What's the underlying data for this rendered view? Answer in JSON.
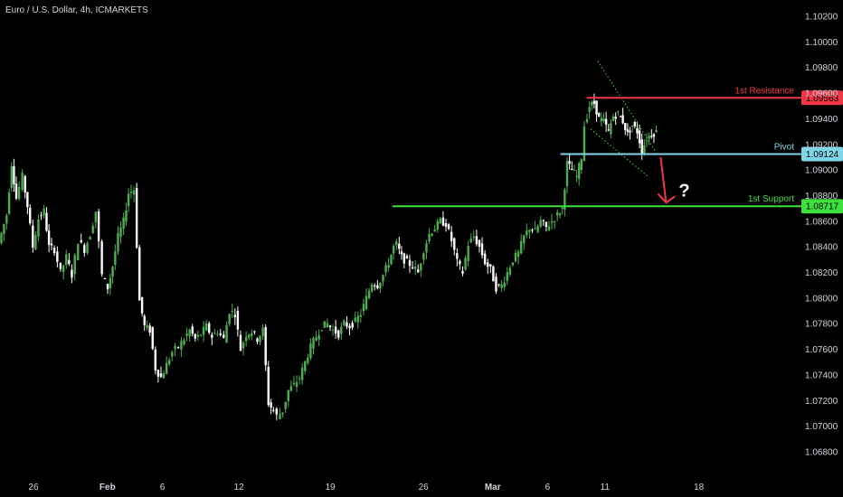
{
  "header": {
    "symbol_title": "Euro / U.S. Dollar, 4h, ICMARKETS"
  },
  "colors": {
    "background": "#000000",
    "candle": "#ffffff",
    "candle_up": "#4caf50",
    "resistance": "#f23645",
    "pivot": "#7fd6e8",
    "support": "#3ee03e",
    "channel": "#3ee03e",
    "arrow": "#f23645",
    "axis_text": "#d1d4dc"
  },
  "chart_data": {
    "type": "candlestick",
    "title": "Euro / U.S. Dollar, 4h, ICMARKETS",
    "y_range": [
      1.068,
      1.102
    ],
    "y_ticks": [
      "1.10200",
      "1.10000",
      "1.09800",
      "1.09600",
      "1.09400",
      "1.09200",
      "1.09000",
      "1.08800",
      "1.08600",
      "1.08400",
      "1.08200",
      "1.08000",
      "1.07800",
      "1.07600",
      "1.07400",
      "1.07200",
      "1.07000",
      "1.06800"
    ],
    "x_ticks": [
      {
        "label": "26",
        "pos": 0.042
      },
      {
        "label": "Feb",
        "pos": 0.135
      },
      {
        "label": "6",
        "pos": 0.204
      },
      {
        "label": "12",
        "pos": 0.3
      },
      {
        "label": "19",
        "pos": 0.415
      },
      {
        "label": "26",
        "pos": 0.532
      },
      {
        "label": "Mar",
        "pos": 0.619
      },
      {
        "label": "6",
        "pos": 0.688
      },
      {
        "label": "11",
        "pos": 0.76
      },
      {
        "label": "18",
        "pos": 0.878
      }
    ],
    "price_path": [
      [
        0.0,
        1.0843
      ],
      [
        0.01,
        1.0865
      ],
      [
        0.016,
        1.0905
      ],
      [
        0.022,
        1.0878
      ],
      [
        0.03,
        1.0895
      ],
      [
        0.036,
        1.0872
      ],
      [
        0.043,
        1.084
      ],
      [
        0.05,
        1.0862
      ],
      [
        0.057,
        1.0868
      ],
      [
        0.063,
        1.084
      ],
      [
        0.07,
        1.0838
      ],
      [
        0.078,
        1.082
      ],
      [
        0.085,
        1.0832
      ],
      [
        0.092,
        1.0818
      ],
      [
        0.1,
        1.0845
      ],
      [
        0.108,
        1.0838
      ],
      [
        0.115,
        1.085
      ],
      [
        0.122,
        1.0868
      ],
      [
        0.13,
        1.0818
      ],
      [
        0.137,
        1.0808
      ],
      [
        0.143,
        1.0825
      ],
      [
        0.15,
        1.0848
      ],
      [
        0.157,
        1.086
      ],
      [
        0.163,
        1.0882
      ],
      [
        0.17,
        1.0885
      ],
      [
        0.177,
        1.0798
      ],
      [
        0.183,
        1.0778
      ],
      [
        0.19,
        1.0775
      ],
      [
        0.197,
        1.0745
      ],
      [
        0.204,
        1.0738
      ],
      [
        0.211,
        1.0748
      ],
      [
        0.218,
        1.0758
      ],
      [
        0.226,
        1.0762
      ],
      [
        0.233,
        1.0768
      ],
      [
        0.24,
        1.0775
      ],
      [
        0.247,
        1.0768
      ],
      [
        0.254,
        1.0772
      ],
      [
        0.261,
        1.0778
      ],
      [
        0.268,
        1.077
      ],
      [
        0.275,
        1.0774
      ],
      [
        0.283,
        1.0768
      ],
      [
        0.29,
        1.079
      ],
      [
        0.297,
        1.0788
      ],
      [
        0.304,
        1.076
      ],
      [
        0.311,
        1.0772
      ],
      [
        0.318,
        1.0774
      ],
      [
        0.325,
        1.0768
      ],
      [
        0.332,
        1.0775
      ],
      [
        0.339,
        1.0718
      ],
      [
        0.345,
        1.0712
      ],
      [
        0.35,
        1.0708
      ],
      [
        0.357,
        1.0712
      ],
      [
        0.364,
        1.0728
      ],
      [
        0.371,
        1.0732
      ],
      [
        0.378,
        1.0738
      ],
      [
        0.385,
        1.075
      ],
      [
        0.392,
        1.0762
      ],
      [
        0.399,
        1.077
      ],
      [
        0.406,
        1.0778
      ],
      [
        0.413,
        1.078
      ],
      [
        0.42,
        1.0775
      ],
      [
        0.427,
        1.0772
      ],
      [
        0.434,
        1.078
      ],
      [
        0.441,
        1.0778
      ],
      [
        0.448,
        1.0782
      ],
      [
        0.455,
        1.0788
      ],
      [
        0.462,
        1.08
      ],
      [
        0.469,
        1.0812
      ],
      [
        0.476,
        1.081
      ],
      [
        0.483,
        1.0818
      ],
      [
        0.49,
        1.0828
      ],
      [
        0.496,
        1.084
      ],
      [
        0.5,
        1.0842
      ],
      [
        0.506,
        1.0832
      ],
      [
        0.513,
        1.0828
      ],
      [
        0.52,
        1.0825
      ],
      [
        0.527,
        1.082
      ],
      [
        0.534,
        1.0838
      ],
      [
        0.541,
        1.085
      ],
      [
        0.548,
        1.0855
      ],
      [
        0.555,
        1.086
      ],
      [
        0.562,
        1.0858
      ],
      [
        0.569,
        1.0845
      ],
      [
        0.576,
        1.0828
      ],
      [
        0.583,
        1.082
      ],
      [
        0.59,
        1.0842
      ],
      [
        0.597,
        1.0848
      ],
      [
        0.604,
        1.084
      ],
      [
        0.611,
        1.0828
      ],
      [
        0.618,
        1.0822
      ],
      [
        0.625,
        1.0808
      ],
      [
        0.632,
        1.081
      ],
      [
        0.639,
        1.082
      ],
      [
        0.646,
        1.083
      ],
      [
        0.653,
        1.0835
      ],
      [
        0.66,
        1.0848
      ],
      [
        0.667,
        1.0855
      ],
      [
        0.674,
        1.0852
      ],
      [
        0.681,
        1.086
      ],
      [
        0.688,
        1.0855
      ],
      [
        0.695,
        1.086
      ],
      [
        0.702,
        1.0865
      ],
      [
        0.708,
        1.087
      ],
      [
        0.714,
        1.0905
      ],
      [
        0.72,
        1.09
      ],
      [
        0.726,
        1.0895
      ],
      [
        0.732,
        1.091
      ],
      [
        0.736,
        1.0935
      ],
      [
        0.742,
        1.095
      ],
      [
        0.748,
        1.0952
      ],
      [
        0.754,
        1.094
      ],
      [
        0.76,
        1.0938
      ],
      [
        0.766,
        1.093
      ],
      [
        0.772,
        1.0942
      ],
      [
        0.778,
        1.0944
      ],
      [
        0.784,
        1.0938
      ],
      [
        0.79,
        1.0928
      ],
      [
        0.796,
        1.0935
      ],
      [
        0.802,
        1.093
      ],
      [
        0.808,
        1.0915
      ],
      [
        0.814,
        1.0925
      ],
      [
        0.82,
        1.0928
      ],
      [
        0.826,
        1.093
      ]
    ],
    "levels": [
      {
        "key": "resistance",
        "name": "1st Resistance",
        "value": 1.09563,
        "tag": "1.09563",
        "x_start": 0.737
      },
      {
        "key": "pivot",
        "name": "Pivot",
        "value": 1.09124,
        "tag": "1.09124",
        "x_start": 0.704
      },
      {
        "key": "support",
        "name": "1st Support",
        "value": 1.08717,
        "tag": "1.08717",
        "x_start": 0.493
      }
    ],
    "channel": {
      "upper": [
        [
          0.751,
          1.0985
        ],
        [
          0.823,
          1.0915
        ]
      ],
      "lower": [
        [
          0.742,
          1.0932
        ],
        [
          0.814,
          1.0895
        ]
      ]
    },
    "forecast_arrow": {
      "from": [
        0.83,
        1.091
      ],
      "via": [
        0.836,
        1.0878
      ]
    },
    "annotation": "?"
  }
}
